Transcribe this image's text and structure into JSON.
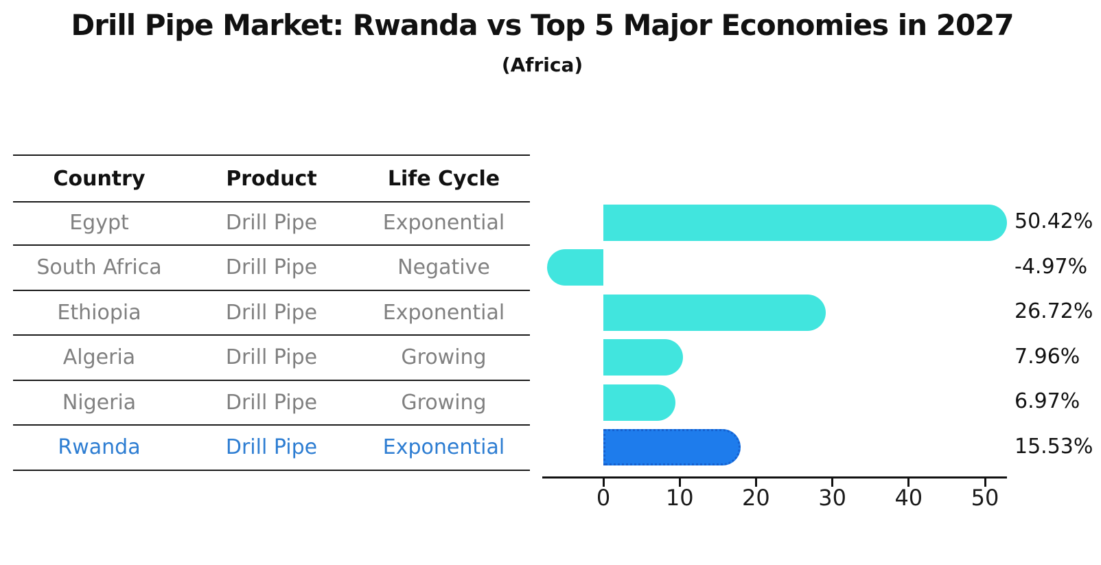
{
  "title": "Drill Pipe Market: Rwanda vs Top 5 Major Economies in 2027",
  "subtitle": "(Africa)",
  "table": {
    "headers": [
      "Country",
      "Product",
      "Life Cycle"
    ],
    "rows": [
      {
        "country": "Egypt",
        "product": "Drill Pipe",
        "life_cycle": "Exponential",
        "highlighted": false
      },
      {
        "country": "South Africa",
        "product": "Drill Pipe",
        "life_cycle": "Negative",
        "highlighted": false
      },
      {
        "country": "Ethiopia",
        "product": "Drill Pipe",
        "life_cycle": "Exponential",
        "highlighted": false
      },
      {
        "country": "Algeria",
        "product": "Drill Pipe",
        "life_cycle": "Growing",
        "highlighted": false
      },
      {
        "country": "Nigeria",
        "product": "Drill Pipe",
        "life_cycle": "Growing",
        "highlighted": false
      },
      {
        "country": "Rwanda",
        "product": "Drill Pipe",
        "life_cycle": "Exponential",
        "highlighted": true
      }
    ]
  },
  "chart_data": {
    "type": "bar",
    "orientation": "horizontal",
    "title": "",
    "xlabel": "",
    "ylabel": "",
    "categories": [
      "Egypt",
      "South Africa",
      "Ethiopia",
      "Algeria",
      "Nigeria",
      "Rwanda"
    ],
    "values": [
      50.42,
      -4.97,
      26.72,
      7.96,
      6.97,
      15.53
    ],
    "value_labels": [
      "50.42%",
      "-4.97%",
      "26.72%",
      "7.96%",
      "6.97%",
      "15.53%"
    ],
    "x_ticks": [
      0,
      10,
      20,
      30,
      40,
      50
    ],
    "xlim": [
      -8,
      53
    ],
    "grid": false,
    "legend": false,
    "bar_color": "#41e5de",
    "highlight_index": 5,
    "highlight_color": "#1e7cec",
    "highlight_border_color": "#1560ce"
  },
  "colors": {
    "body_text_gray": "#808080",
    "highlight_text_blue": "#2d7dd2",
    "axis_black": "#111111"
  }
}
